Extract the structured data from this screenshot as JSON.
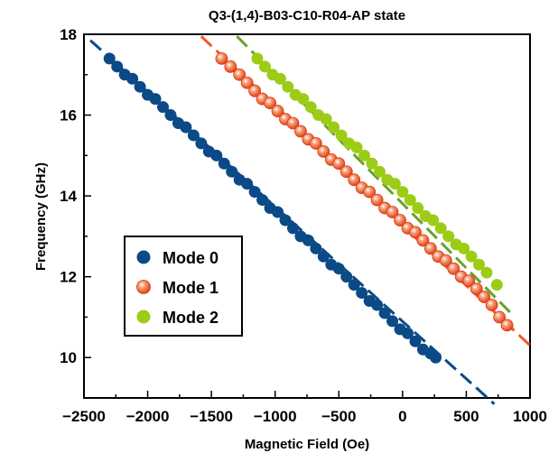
{
  "chart_data": {
    "type": "scatter",
    "title": "Q3-(1,4)-B03-C10-R04-AP state",
    "xlabel": "Magnetic Field (Oe)",
    "ylabel": "Frequency (GHz)",
    "xlim": [
      -2500,
      1000
    ],
    "ylim": [
      9,
      18
    ],
    "xticks": [
      -2500,
      -2000,
      -1500,
      -1000,
      -500,
      0,
      500,
      1000
    ],
    "yticks": [
      10,
      12,
      14,
      16,
      18
    ],
    "grid": false,
    "legend_position": "lower-left",
    "series": [
      {
        "name": "Mode 0",
        "color": "#0b4a86",
        "marker": "filled-circle",
        "x": [
          -2300,
          -2240,
          -2180,
          -2120,
          -2060,
          -2000,
          -1940,
          -1880,
          -1820,
          -1760,
          -1700,
          -1640,
          -1580,
          -1520,
          -1460,
          -1400,
          -1340,
          -1280,
          -1220,
          -1160,
          -1100,
          -1040,
          -980,
          -920,
          -860,
          -800,
          -740,
          -680,
          -620,
          -560,
          -500,
          -440,
          -380,
          -320,
          -260,
          -200,
          -140,
          -80,
          -20,
          40,
          100,
          160,
          220,
          260
        ],
        "y": [
          17.4,
          17.2,
          17.0,
          16.9,
          16.7,
          16.5,
          16.4,
          16.2,
          16.0,
          15.8,
          15.7,
          15.5,
          15.3,
          15.1,
          15.0,
          14.8,
          14.6,
          14.4,
          14.3,
          14.1,
          13.9,
          13.7,
          13.6,
          13.4,
          13.2,
          13.0,
          12.9,
          12.7,
          12.5,
          12.3,
          12.2,
          12.0,
          11.8,
          11.6,
          11.4,
          11.3,
          11.1,
          10.9,
          10.7,
          10.6,
          10.4,
          10.2,
          10.1,
          10.0
        ]
      },
      {
        "name": "Mode 1",
        "color": "#f15a2a",
        "marker": "glossy-circle",
        "x": [
          -1420,
          -1350,
          -1280,
          -1220,
          -1160,
          -1100,
          -1040,
          -980,
          -920,
          -860,
          -800,
          -740,
          -680,
          -620,
          -560,
          -500,
          -440,
          -380,
          -320,
          -260,
          -200,
          -140,
          -80,
          -20,
          40,
          100,
          160,
          220,
          280,
          340,
          400,
          460,
          520,
          580,
          640,
          700,
          760,
          820
        ],
        "y": [
          17.4,
          17.2,
          17.0,
          16.8,
          16.6,
          16.4,
          16.3,
          16.1,
          15.9,
          15.8,
          15.6,
          15.4,
          15.3,
          15.1,
          14.9,
          14.8,
          14.6,
          14.4,
          14.2,
          14.1,
          13.9,
          13.7,
          13.6,
          13.4,
          13.2,
          13.1,
          12.9,
          12.7,
          12.5,
          12.4,
          12.2,
          12.0,
          11.9,
          11.7,
          11.5,
          11.3,
          11.0,
          10.8
        ]
      },
      {
        "name": "Mode 2",
        "color": "#9dcc16",
        "marker": "filled-circle",
        "x": [
          -1140,
          -1080,
          -1020,
          -960,
          -900,
          -840,
          -780,
          -720,
          -660,
          -600,
          -540,
          -480,
          -420,
          -360,
          -300,
          -240,
          -180,
          -120,
          -60,
          0,
          60,
          120,
          180,
          240,
          300,
          360,
          420,
          480,
          540,
          600,
          660,
          740
        ],
        "y": [
          17.4,
          17.2,
          17.0,
          16.9,
          16.7,
          16.5,
          16.4,
          16.2,
          16.0,
          15.9,
          15.7,
          15.5,
          15.3,
          15.2,
          15.0,
          14.8,
          14.6,
          14.4,
          14.3,
          14.1,
          13.9,
          13.7,
          13.5,
          13.4,
          13.2,
          13.0,
          12.8,
          12.7,
          12.5,
          12.3,
          12.1,
          11.8
        ]
      }
    ],
    "fits": [
      {
        "series": "Mode 0",
        "color": "#0b4a86",
        "style": "dashed",
        "x": [
          -2450,
          720
        ],
        "y": [
          17.85,
          8.85
        ]
      },
      {
        "series": "Mode 1",
        "color": "#f15a2a",
        "style": "dashed",
        "x": [
          -1580,
          1000
        ],
        "y": [
          17.95,
          10.3
        ]
      },
      {
        "series": "Mode 2",
        "color": "#6aa22c",
        "style": "dashed",
        "x": [
          -1300,
          850
        ],
        "y": [
          17.95,
          11.1
        ]
      }
    ]
  }
}
